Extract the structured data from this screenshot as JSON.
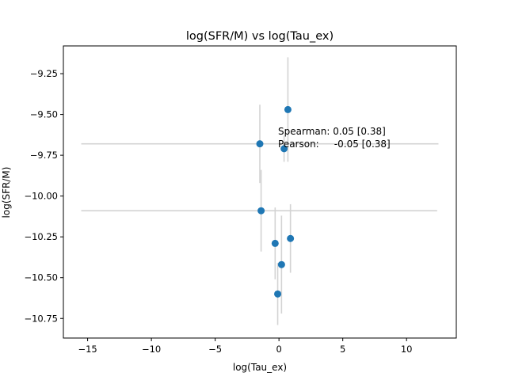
{
  "chart_data": {
    "type": "scatter",
    "title": "log(SFR/M) vs log(Tau_ex)",
    "xlabel": "log(Tau_ex)",
    "ylabel": "log(SFR/M)",
    "xlim": [
      -16.9,
      13.9
    ],
    "ylim": [
      -10.87,
      -9.08
    ],
    "xticks": [
      -15,
      -10,
      -5,
      0,
      5,
      10
    ],
    "xtick_labels": [
      "−15",
      "−10",
      "−5",
      "0",
      "5",
      "10"
    ],
    "yticks": [
      -10.75,
      -10.5,
      -10.25,
      -10.0,
      -9.75,
      -9.5,
      -9.25
    ],
    "ytick_labels": [
      "−10.75",
      "−10.50",
      "−10.25",
      "−10.00",
      "−9.75",
      "−9.50",
      "−9.25"
    ],
    "grid": false,
    "marker_color": "#1f77b4",
    "errorbar_color": "#d3d3d3",
    "points": [
      {
        "x": 0.7,
        "y": -9.47,
        "xerr_low": 0.0,
        "xerr_high": 0.0,
        "yerr_low": 0.32,
        "yerr_high": 0.32
      },
      {
        "x": -1.5,
        "y": -9.68,
        "xerr_low": 14.0,
        "xerr_high": 14.0,
        "yerr_low": 0.24,
        "yerr_high": 0.24
      },
      {
        "x": 0.4,
        "y": -9.71,
        "xerr_low": 0.0,
        "xerr_high": 0.0,
        "yerr_low": 0.08,
        "yerr_high": 0.08
      },
      {
        "x": -1.4,
        "y": -10.09,
        "xerr_low": 14.1,
        "xerr_high": 13.8,
        "yerr_low": 0.25,
        "yerr_high": 0.25
      },
      {
        "x": -0.3,
        "y": -10.29,
        "xerr_low": 0.0,
        "xerr_high": 0.0,
        "yerr_low": 0.22,
        "yerr_high": 0.22
      },
      {
        "x": 0.9,
        "y": -10.26,
        "xerr_low": 0.0,
        "xerr_high": 0.0,
        "yerr_low": 0.21,
        "yerr_high": 0.21
      },
      {
        "x": 0.2,
        "y": -10.42,
        "xerr_low": 0.0,
        "xerr_high": 0.0,
        "yerr_low": 0.3,
        "yerr_high": 0.3
      },
      {
        "x": -0.1,
        "y": -10.6,
        "xerr_low": 0.0,
        "xerr_high": 0.0,
        "yerr_low": 0.19,
        "yerr_high": 0.19
      }
    ],
    "annotations": [
      "Spearman: 0.05 [0.38]",
      "Pearson:     -0.05 [0.38]"
    ]
  }
}
